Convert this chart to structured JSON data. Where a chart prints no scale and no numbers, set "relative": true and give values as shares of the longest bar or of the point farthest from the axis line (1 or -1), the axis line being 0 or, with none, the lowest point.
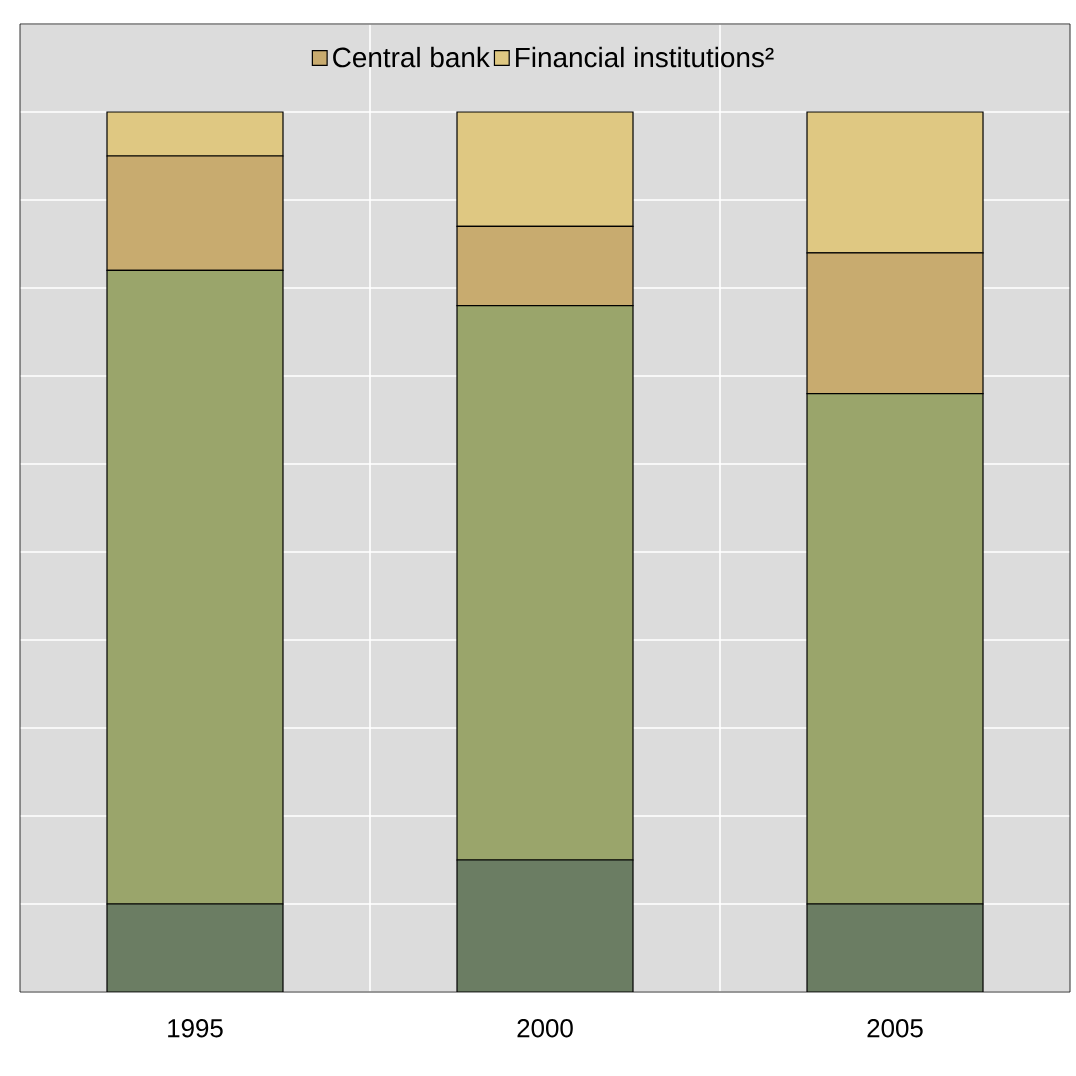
{
  "chart_data": {
    "type": "bar",
    "stacked": true,
    "relative": true,
    "grid": true,
    "legend": "top",
    "categories": [
      "1995",
      "2000",
      "2005"
    ],
    "series": [
      {
        "color": "#6b7d63",
        "values": [
          0.1,
          0.15,
          0.1
        ]
      },
      {
        "color": "#9aa56b",
        "values": [
          0.72,
          0.63,
          0.58
        ]
      },
      {
        "name": "Central bank",
        "color": "#c8ab6f",
        "values": [
          0.13,
          0.09,
          0.16
        ]
      },
      {
        "name": "Financial institutions²",
        "color": "#dfc882",
        "values": [
          0.05,
          0.13,
          0.16
        ]
      }
    ]
  }
}
